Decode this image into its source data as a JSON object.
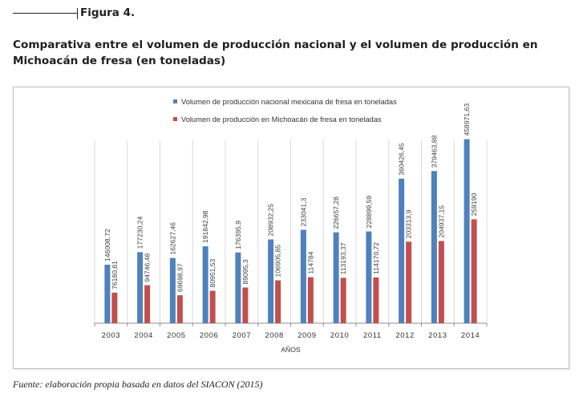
{
  "figure": {
    "label": "Figura 4.",
    "title": "Comparativa entre el volumen de producción nacional y el volumen de producción en Michoacán de fresa (en toneladas)",
    "source": "Fuente: elaboración propia basada en datos del SIACON (2015)"
  },
  "chart_data": {
    "type": "bar",
    "xlabel": "AÑOS",
    "ylabel": "",
    "ylim": [
      0,
      500000
    ],
    "grid": "vertical category separators",
    "legend_position": "top-left",
    "categories": [
      "2003",
      "2004",
      "2005",
      "2006",
      "2007",
      "2008",
      "2009",
      "2010",
      "2011",
      "2012",
      "2013",
      "2014"
    ],
    "series": [
      {
        "name": "Volumen de producción nacional mexicana de fresa en toneladas",
        "color": "#4f81bd",
        "values": [
          146008.72,
          177230.24,
          162627.46,
          191842.98,
          176395.9,
          208932.25,
          233041.3,
          226657.28,
          228899.59,
          360426.45,
          379463.88,
          458971.63
        ],
        "labels": [
          "146008,72",
          "177230,24",
          "162627,46",
          "191842,98",
          "176395,9",
          "208932,25",
          "233041,3",
          "226657,28",
          "228899,59",
          "360426,45",
          "379463,88",
          "458971,63"
        ]
      },
      {
        "name": "Volumen de producción en Michoacán de fresa en toneladas",
        "color": "#c0504d",
        "values": [
          76180.81,
          94746.48,
          69698.97,
          80951.53,
          89095.3,
          106905.85,
          114784,
          113193.37,
          114170.72,
          203313.9,
          204937.15,
          259190
        ],
        "labels": [
          "76180,81",
          "94746,48",
          "69698,97",
          "80951,53",
          "89095,3",
          "106905,85",
          "114784",
          "113193,37",
          "114170,72",
          "203313,9",
          "204937,15",
          "259190"
        ]
      }
    ]
  }
}
